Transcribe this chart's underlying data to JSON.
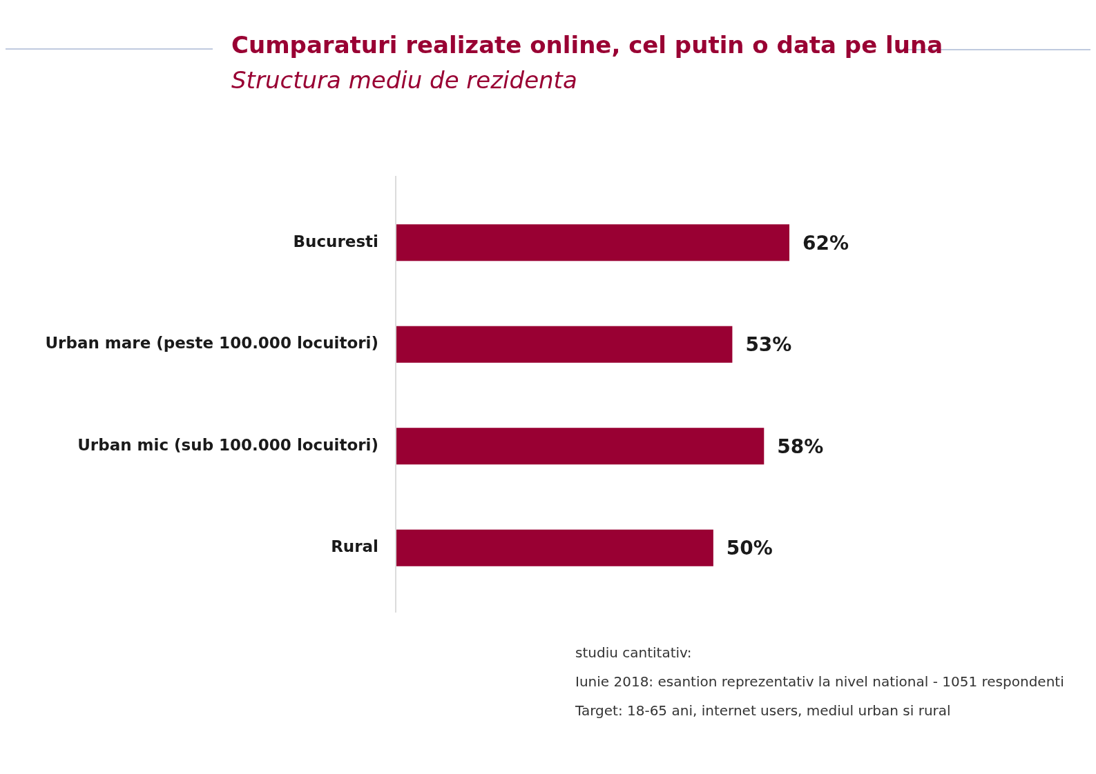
{
  "chart_data": {
    "type": "bar",
    "orientation": "horizontal",
    "title": "Cumparaturi realizate online, cel putin o data pe luna",
    "subtitle": "Structura mediu de rezidenta",
    "categories": [
      "Bucuresti",
      "Urban mare (peste 100.000 locuitori)",
      "Urban mic (sub 100.000 locuitori)",
      "Rural"
    ],
    "values": [
      62,
      53,
      58,
      50
    ],
    "value_labels": [
      "62%",
      "53%",
      "58%",
      "50%"
    ],
    "color": "#990033",
    "annotations": [
      "studiu cantitativ:",
      "Iunie 2018: esantion reprezentativ la nivel national - 1051 respondenti",
      "Target: 18-65 ani, internet users, mediul urban si rural"
    ]
  }
}
